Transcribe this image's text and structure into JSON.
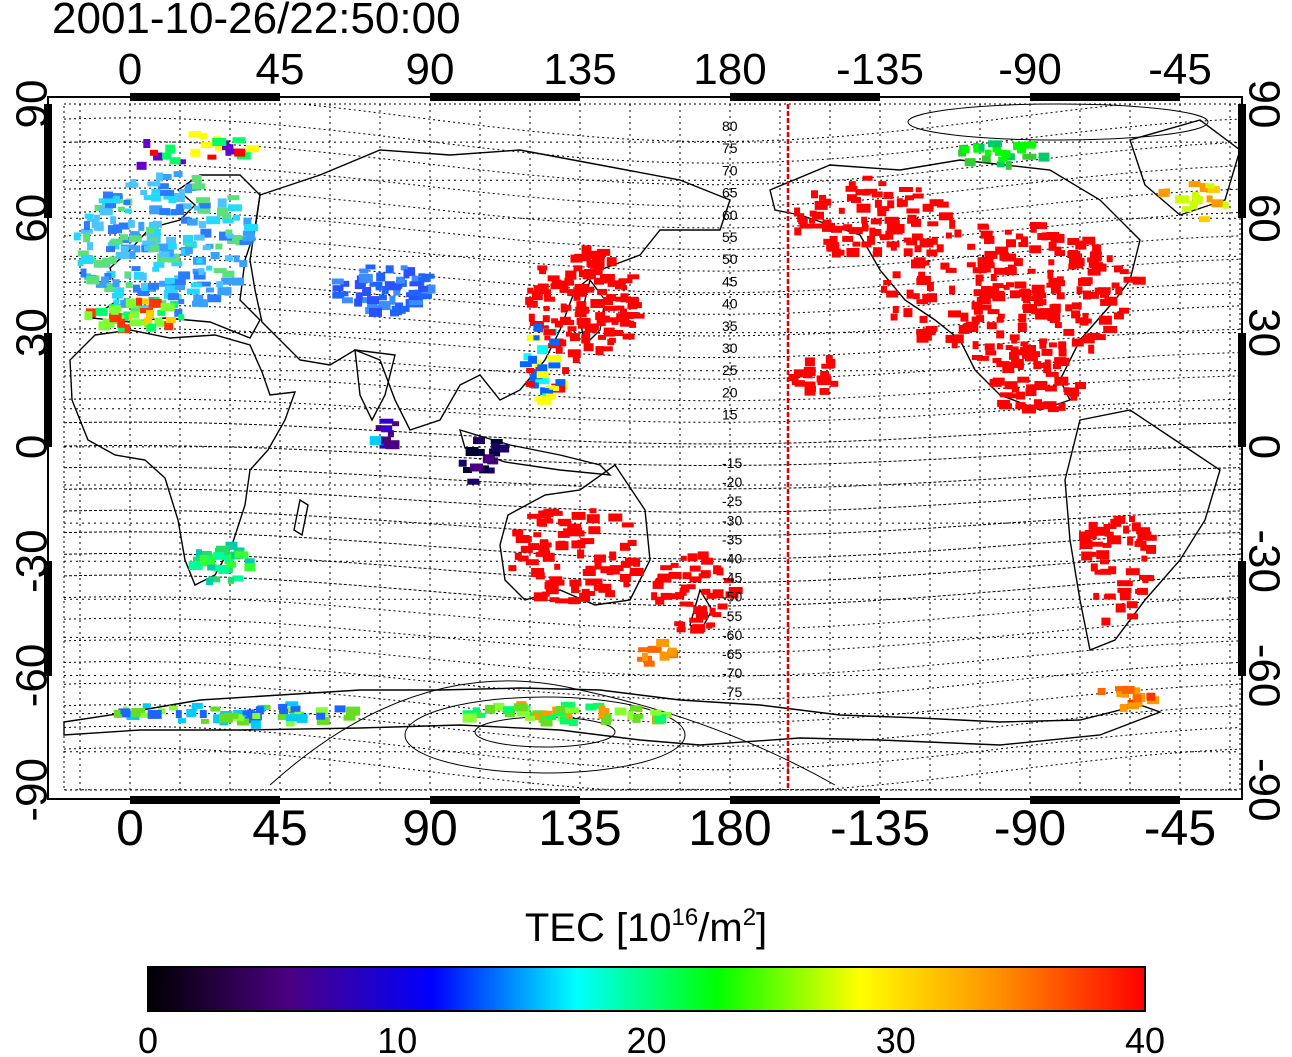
{
  "map": {
    "timestamp": "2001-10-26/22:50:00",
    "projection": "cylindrical, 180-degree meridian line shown",
    "lon_top_labels": [
      "0",
      "45",
      "90",
      "135",
      "180",
      "-135",
      "-90",
      "-45"
    ],
    "lon_bottom_labels": [
      "0",
      "45",
      "90",
      "135",
      "180",
      "-135",
      "-90",
      "-45"
    ],
    "lat_left_labels": [
      "90",
      "60",
      "30",
      "0",
      "-30",
      "-60",
      "-90"
    ],
    "lat_right_labels": [
      "90",
      "60",
      "30",
      "0",
      "-30",
      "-60",
      "-90"
    ],
    "contour_labels": [
      "80",
      "75",
      "70",
      "65",
      "60",
      "55",
      "50",
      "45",
      "40",
      "35",
      "30",
      "25",
      "20",
      "15",
      "-15",
      "-20",
      "-25",
      "-30",
      "-35",
      "-40",
      "-45",
      "-50",
      "-55",
      "-60",
      "-65",
      "-70",
      "-75"
    ],
    "meridian_line_color": "#e00000"
  },
  "colorbar": {
    "title_main": "TEC  [10",
    "title_exp": "16",
    "title_unit": "/m",
    "title_unit_exp": "2",
    "title_close": "]",
    "ticks": [
      "0",
      "10",
      "20",
      "30",
      "40"
    ],
    "min": 0,
    "max": 40,
    "colors": [
      "#000000",
      "#4b0082",
      "#0000ff",
      "#00ffff",
      "#00ff00",
      "#ffff00",
      "#ff8c00",
      "#ff0000"
    ]
  },
  "tec_regions": [
    {
      "name": "north-america",
      "color": "#ff0000",
      "level": 40
    },
    {
      "name": "east-asia",
      "color": "#ff0000",
      "level": 40
    },
    {
      "name": "australia",
      "color": "#ff0000",
      "level": 40
    },
    {
      "name": "europe",
      "color": "#3399ff",
      "level": 13
    },
    {
      "name": "siberia",
      "color": "#1e64ff",
      "level": 11
    },
    {
      "name": "antarctica",
      "color": "#66dd22",
      "level": 24
    },
    {
      "name": "southern-africa",
      "color": "#22dd66",
      "level": 22
    }
  ]
}
